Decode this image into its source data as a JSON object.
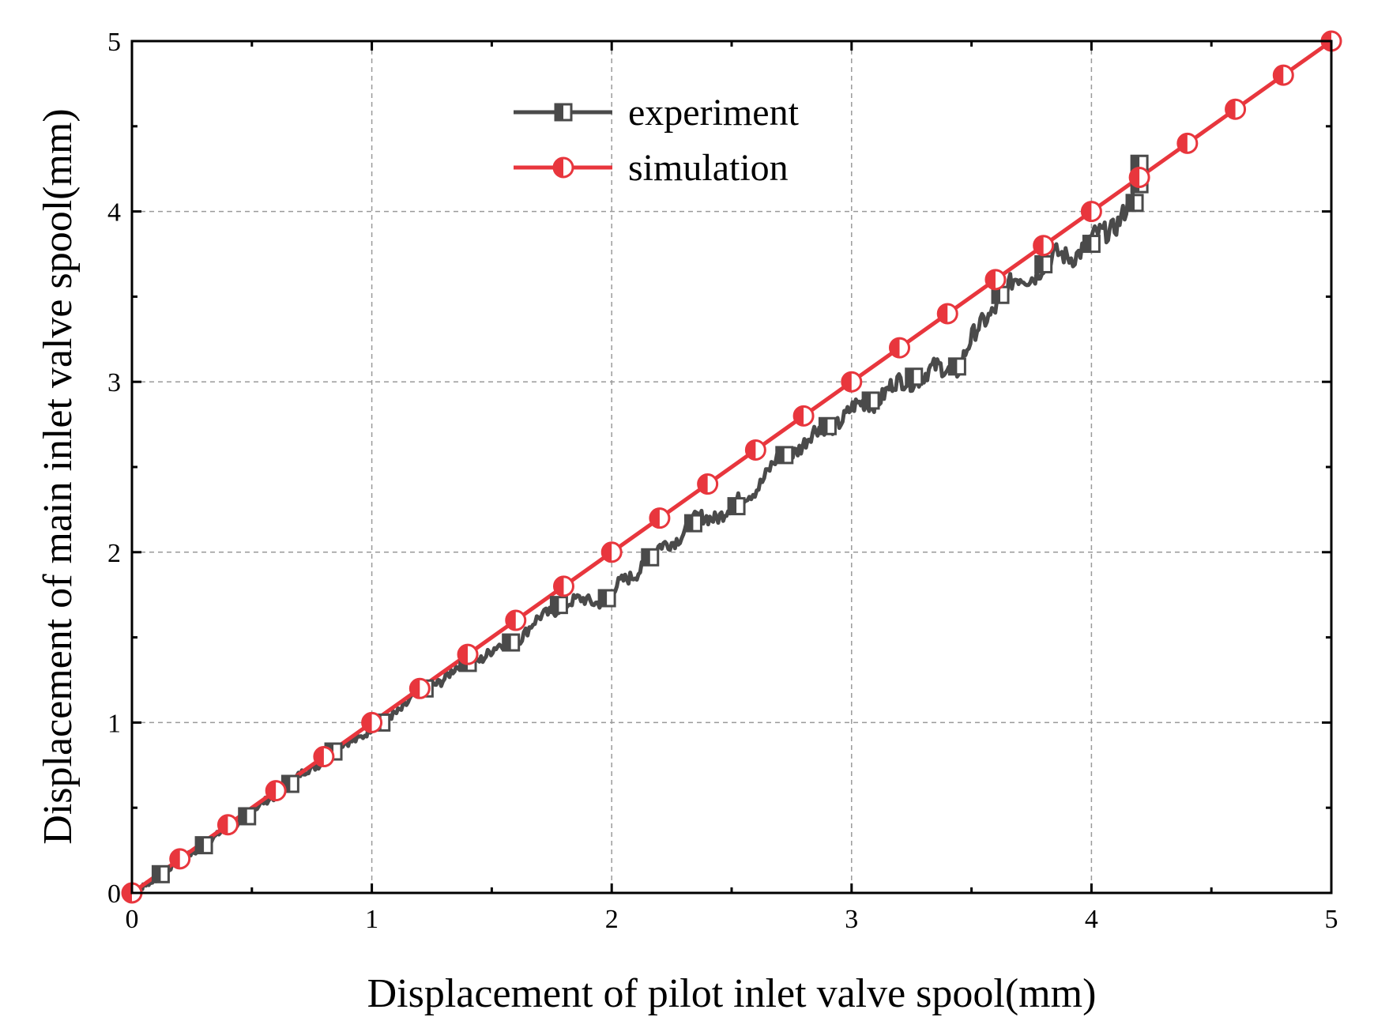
{
  "chart_data": {
    "type": "line",
    "title": "",
    "xlabel": "Displacement of pilot inlet valve spool(mm)",
    "ylabel": "Displacement of main inlet valve spool(mm)",
    "xlim": [
      0,
      5
    ],
    "ylim": [
      0,
      5
    ],
    "xticks": [
      0,
      1,
      2,
      3,
      4,
      5
    ],
    "yticks": [
      0,
      1,
      2,
      3,
      4,
      5
    ],
    "xtick_labels": [
      "0",
      "1",
      "2",
      "3",
      "4",
      "5"
    ],
    "ytick_labels": [
      "0",
      "1",
      "2",
      "3",
      "4",
      "5"
    ],
    "grid": true,
    "legend_position": "top-center",
    "series": [
      {
        "name": "experiment",
        "color": "#4a4a4a",
        "marker": "half-filled-square",
        "x": [
          0.12,
          0.3,
          0.48,
          0.66,
          0.84,
          1.04,
          1.22,
          1.4,
          1.58,
          1.78,
          1.98,
          2.16,
          2.34,
          2.52,
          2.72,
          2.9,
          3.08,
          3.26,
          3.44,
          3.62,
          3.8,
          4.0,
          4.18,
          4.2,
          4.2
        ],
        "y": [
          0.11,
          0.28,
          0.45,
          0.64,
          0.83,
          1.0,
          1.2,
          1.35,
          1.47,
          1.69,
          1.73,
          1.97,
          2.17,
          2.27,
          2.57,
          2.74,
          2.89,
          3.03,
          3.09,
          3.51,
          3.69,
          3.81,
          4.05,
          4.16,
          4.28
        ]
      },
      {
        "name": "simulation",
        "color": "#e8363d",
        "marker": "half-filled-circle",
        "x": [
          0,
          0.2,
          0.4,
          0.6,
          0.8,
          1.0,
          1.2,
          1.4,
          1.6,
          1.8,
          2.0,
          2.2,
          2.4,
          2.6,
          2.8,
          3.0,
          3.2,
          3.4,
          3.6,
          3.8,
          4.0,
          4.2,
          4.4,
          4.6,
          4.8,
          5.0
        ],
        "y": [
          0,
          0.2,
          0.4,
          0.6,
          0.8,
          1.0,
          1.2,
          1.4,
          1.6,
          1.8,
          2.0,
          2.2,
          2.4,
          2.6,
          2.8,
          3.0,
          3.2,
          3.4,
          3.6,
          3.8,
          4.0,
          4.2,
          4.4,
          4.6,
          4.8,
          5.0
        ]
      }
    ]
  }
}
